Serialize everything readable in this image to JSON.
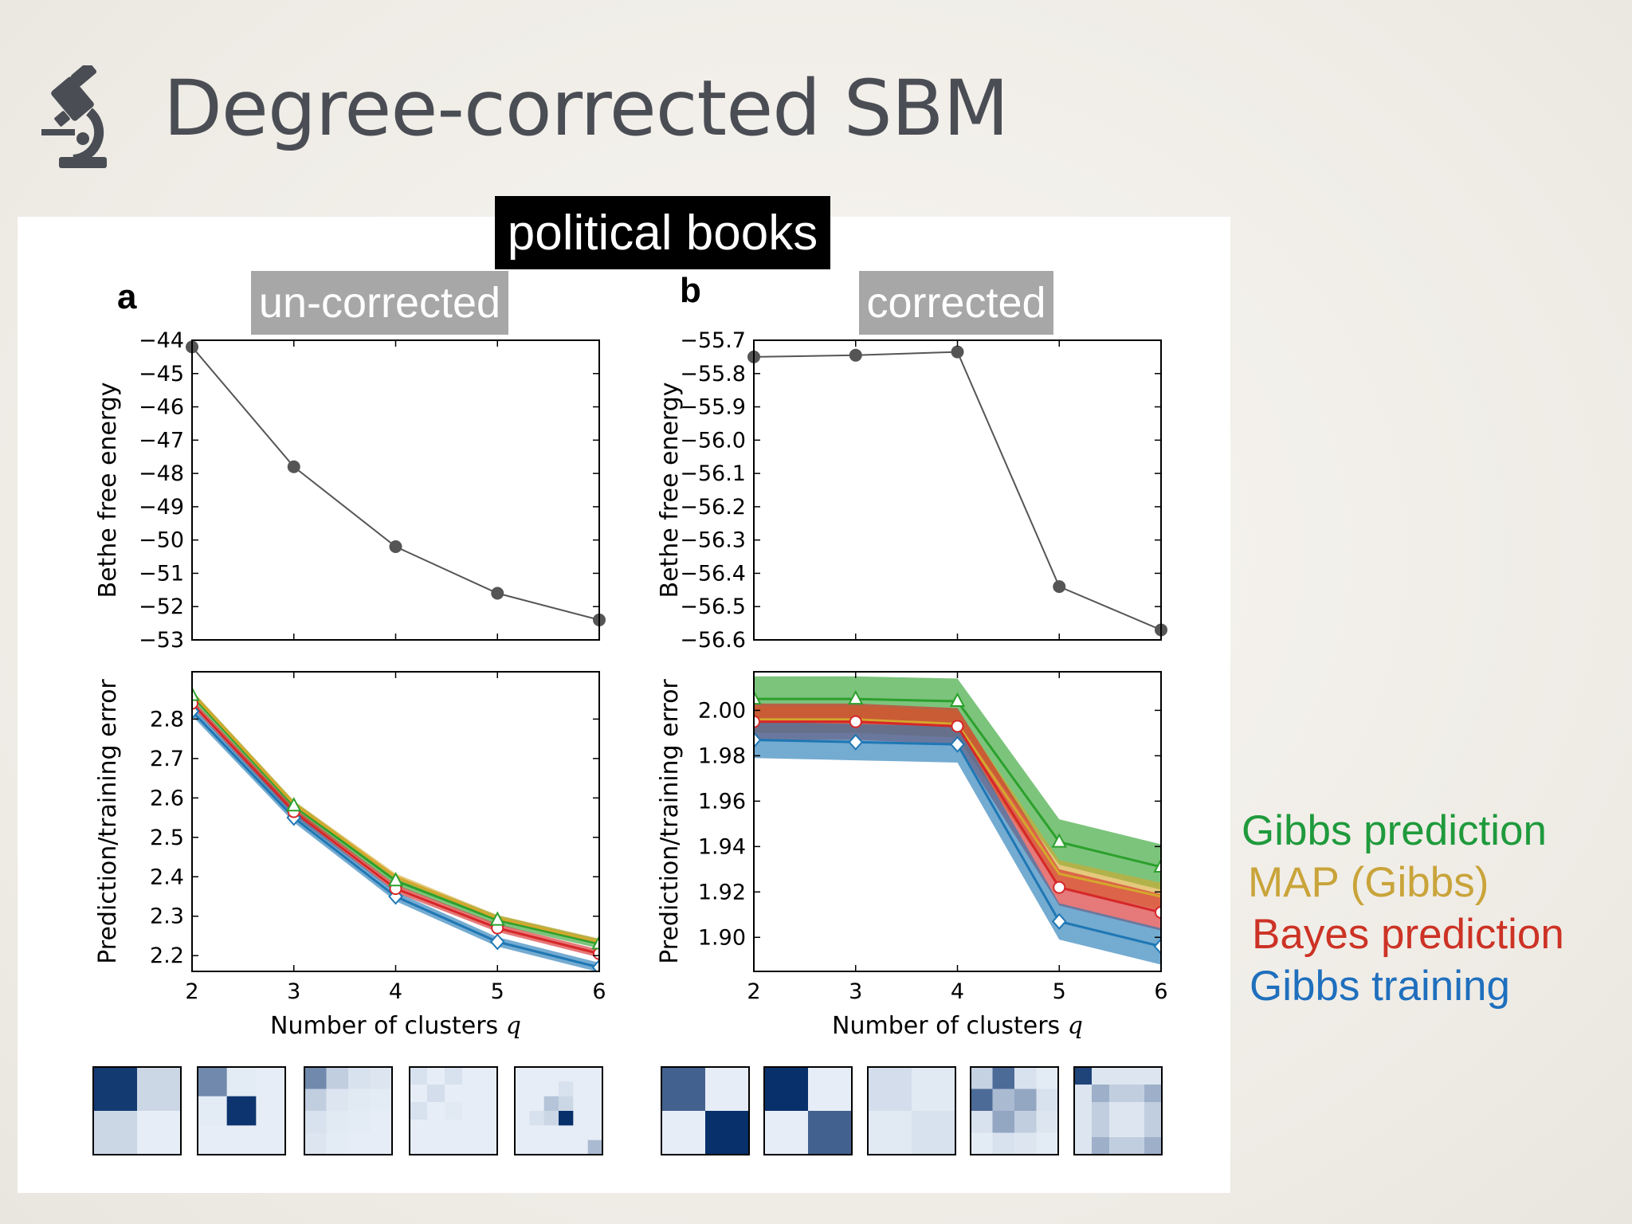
{
  "slide": {
    "title": "Degree-corrected SBM",
    "icon": "microscope-icon",
    "dataset_label": "political books",
    "panel_a": {
      "letter": "a",
      "tag": "un-corrected"
    },
    "panel_b": {
      "letter": "b",
      "tag": "corrected"
    },
    "legend": [
      "Gibbs prediction",
      "MAP (Gibbs)",
      "Bayes prediction",
      "Gibbs training"
    ],
    "colors": {
      "gibbs_prediction": "#2ca02c",
      "map_gibbs": "#d4a72c",
      "bayes_prediction": "#d62728",
      "gibbs_training": "#1f77b4",
      "energy_line": "#555555"
    }
  },
  "chart_data": [
    {
      "id": "a-top",
      "type": "line",
      "xlabel": "",
      "ylabel": "Bethe free energy",
      "x": [
        2,
        3,
        4,
        5,
        6
      ],
      "xlim": [
        2,
        6
      ],
      "ylim": [
        -53,
        -44
      ],
      "yticks": [
        "−44",
        "−45",
        "−46",
        "−47",
        "−48",
        "−49",
        "−50",
        "−51",
        "−52",
        "−53"
      ],
      "series": [
        {
          "values": [
            -44.2,
            -47.8,
            -50.2,
            -51.6,
            -52.4
          ]
        }
      ]
    },
    {
      "id": "b-top",
      "type": "line",
      "xlabel": "",
      "ylabel": "Bethe free energy",
      "x": [
        2,
        3,
        4,
        5,
        6
      ],
      "xlim": [
        2,
        6
      ],
      "ylim": [
        -56.6,
        -55.7
      ],
      "yticks": [
        "−55.7",
        "−55.8",
        "−55.9",
        "−56.0",
        "−56.1",
        "−56.2",
        "−56.3",
        "−56.4",
        "−56.5",
        "−56.6"
      ],
      "series": [
        {
          "values": [
            -55.75,
            -55.745,
            -55.735,
            -56.44,
            -56.57
          ]
        }
      ]
    },
    {
      "id": "a-bottom",
      "type": "area",
      "xlabel": "Number of clusters q",
      "ylabel": "Prediction/training error",
      "x": [
        2,
        3,
        4,
        5,
        6
      ],
      "xlim": [
        2,
        6
      ],
      "ylim": [
        2.16,
        2.92
      ],
      "xticks": [
        "2",
        "3",
        "4",
        "5",
        "6"
      ],
      "yticks": [
        "2.8",
        "2.7",
        "2.6",
        "2.5",
        "2.4",
        "2.3",
        "2.2"
      ],
      "series": [
        {
          "name": "Gibbs prediction",
          "values": [
            2.86,
            2.58,
            2.39,
            2.29,
            2.23
          ],
          "band": 0.012
        },
        {
          "name": "MAP (Gibbs)",
          "values": [
            2.865,
            2.585,
            2.4,
            2.295,
            2.235
          ],
          "band": 0.008
        },
        {
          "name": "Bayes prediction",
          "values": [
            2.84,
            2.565,
            2.37,
            2.27,
            2.205
          ],
          "band": 0.01
        },
        {
          "name": "Gibbs training",
          "values": [
            2.82,
            2.55,
            2.35,
            2.235,
            2.17
          ],
          "band": 0.012
        }
      ]
    },
    {
      "id": "b-bottom",
      "type": "area",
      "xlabel": "Number of clusters q",
      "ylabel": "Prediction/training error",
      "x": [
        2,
        3,
        4,
        5,
        6
      ],
      "xlim": [
        2,
        6
      ],
      "ylim": [
        1.885,
        2.017
      ],
      "xticks": [
        "2",
        "3",
        "4",
        "5",
        "6"
      ],
      "yticks": [
        "2.00",
        "1.98",
        "1.96",
        "1.94",
        "1.92",
        "1.90"
      ],
      "series": [
        {
          "name": "Gibbs prediction",
          "values": [
            2.005,
            2.005,
            2.004,
            1.942,
            1.931
          ],
          "band": 0.01
        },
        {
          "name": "MAP (Gibbs)",
          "values": [
            1.996,
            1.996,
            1.994,
            1.928,
            1.918
          ],
          "band": 0.006
        },
        {
          "name": "Bayes prediction",
          "values": [
            1.995,
            1.995,
            1.993,
            1.922,
            1.911
          ],
          "band": 0.008
        },
        {
          "name": "Gibbs training",
          "values": [
            1.987,
            1.986,
            1.985,
            1.907,
            1.896
          ],
          "band": 0.008
        }
      ]
    }
  ],
  "matrix_thumbnails": {
    "uncorrected": [
      {
        "q": 2,
        "cells": [
          [
            0.95,
            0.15
          ],
          [
            0.15,
            0.04
          ]
        ]
      },
      {
        "q": 3,
        "cells": [
          [
            0.55,
            0.05,
            0.04
          ],
          [
            0.05,
            0.98,
            0.04
          ],
          [
            0.04,
            0.04,
            0.04
          ]
        ]
      },
      {
        "q": 4,
        "cells": [
          [
            0.55,
            0.2,
            0.1,
            0.08
          ],
          [
            0.2,
            0.08,
            0.06,
            0.05
          ],
          [
            0.1,
            0.06,
            0.05,
            0.04
          ],
          [
            0.08,
            0.05,
            0.04,
            0.04
          ]
        ]
      },
      {
        "q": 5,
        "cells": [
          [
            0.1,
            0.04,
            0.1,
            0.04,
            0.04
          ],
          [
            0.04,
            0.12,
            0.04,
            0.04,
            0.04
          ],
          [
            0.1,
            0.04,
            0.06,
            0.04,
            0.04
          ],
          [
            0.04,
            0.04,
            0.04,
            0.04,
            0.04
          ],
          [
            0.04,
            0.04,
            0.04,
            0.04,
            0.04
          ]
        ]
      },
      {
        "q": 6,
        "cells": [
          [
            0.04,
            0.04,
            0.04,
            0.04,
            0.04,
            0.04
          ],
          [
            0.04,
            0.04,
            0.04,
            0.1,
            0.04,
            0.04
          ],
          [
            0.04,
            0.04,
            0.25,
            0.15,
            0.04,
            0.04
          ],
          [
            0.04,
            0.1,
            0.15,
            1.0,
            0.04,
            0.04
          ],
          [
            0.04,
            0.04,
            0.04,
            0.04,
            0.04,
            0.04
          ],
          [
            0.04,
            0.04,
            0.04,
            0.04,
            0.04,
            0.3
          ]
        ]
      }
    ],
    "corrected": [
      {
        "q": 2,
        "cells": [
          [
            0.75,
            0.04
          ],
          [
            0.04,
            1.0
          ]
        ]
      },
      {
        "q": 3,
        "cells": [
          [
            1.0,
            0.04
          ],
          [
            0.04,
            0.75
          ]
        ]
      },
      {
        "q": 4,
        "cells": [
          [
            0.12,
            0.06
          ],
          [
            0.06,
            0.1
          ]
        ]
      },
      {
        "q": 5,
        "cells": [
          [
            0.18,
            0.7,
            0.1,
            0.05
          ],
          [
            0.7,
            0.3,
            0.4,
            0.1
          ],
          [
            0.1,
            0.4,
            0.2,
            0.08
          ],
          [
            0.05,
            0.1,
            0.08,
            0.05
          ]
        ]
      },
      {
        "q": 6,
        "cells": [
          [
            0.9,
            0.08,
            0.08,
            0.08,
            0.08
          ],
          [
            0.08,
            0.35,
            0.2,
            0.2,
            0.35
          ],
          [
            0.08,
            0.2,
            0.08,
            0.08,
            0.2
          ],
          [
            0.08,
            0.2,
            0.08,
            0.08,
            0.2
          ],
          [
            0.08,
            0.35,
            0.2,
            0.2,
            0.35
          ]
        ]
      }
    ]
  }
}
